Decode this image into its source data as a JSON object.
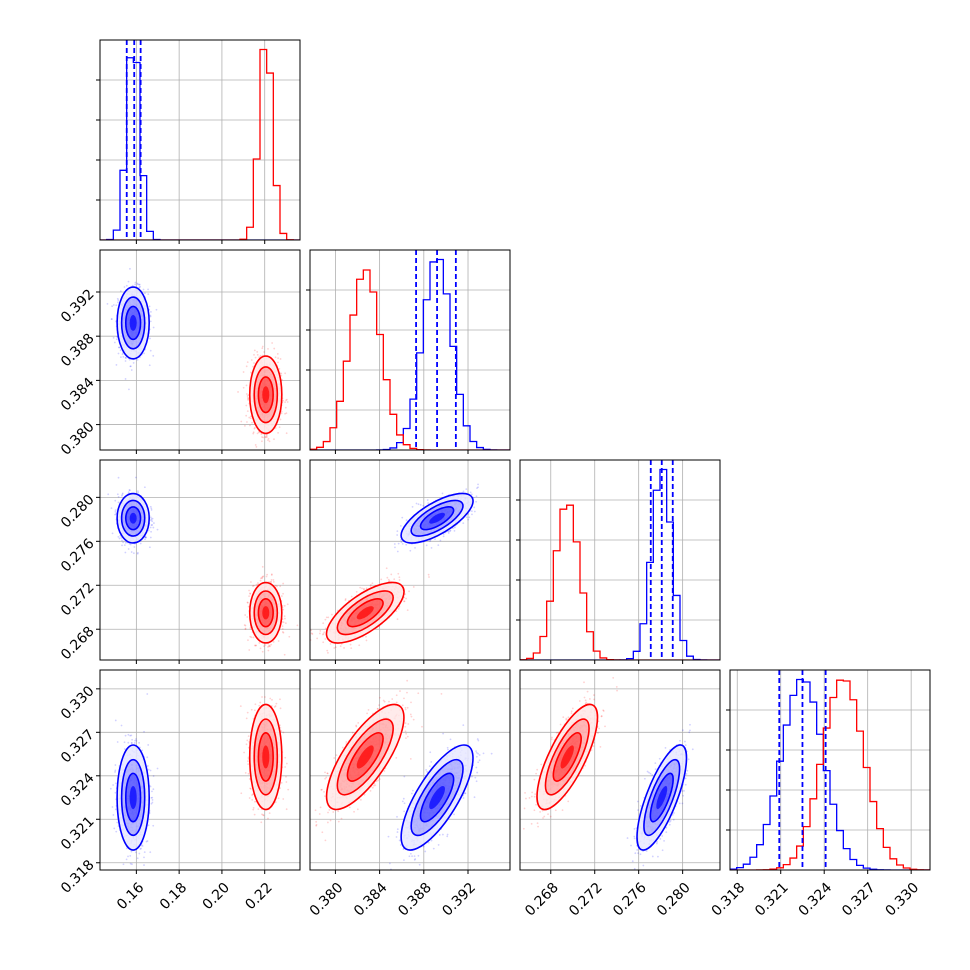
{
  "chart_data": {
    "type": "scatter",
    "title": "",
    "colors": {
      "a": "#0000ff",
      "b": "#ff0000"
    },
    "grid": true,
    "legend": "none",
    "parameters": [
      {
        "ticks": [
          0.16,
          0.18,
          0.2,
          0.22
        ],
        "tick_labels": [
          "0.16",
          "0.18",
          "0.20",
          "0.22"
        ],
        "range": [
          0.143,
          0.2365
        ]
      },
      {
        "ticks": [
          0.38,
          0.384,
          0.388,
          0.392
        ],
        "tick_labels": [
          "0.380",
          "0.384",
          "0.388",
          "0.392"
        ],
        "range": [
          0.3777,
          0.3958
        ]
      },
      {
        "ticks": [
          0.268,
          0.272,
          0.276,
          0.28
        ],
        "tick_labels": [
          "0.268",
          "0.272",
          "0.276",
          "0.280"
        ],
        "range": [
          0.2652,
          0.2834
        ]
      },
      {
        "ticks": [
          0.318,
          0.321,
          0.324,
          0.327,
          0.33
        ],
        "tick_labels": [
          "0.318",
          "0.321",
          "0.324",
          "0.327",
          "0.330"
        ],
        "range": [
          0.3175,
          0.3313
        ]
      }
    ],
    "series": [
      {
        "color": "#0000ff",
        "mean": [
          0.1585,
          0.3892,
          0.2781,
          0.3225
        ],
        "sd": [
          0.003,
          0.0013,
          0.0009,
          0.00145
        ],
        "corr": [
          [
            1,
            0,
            0,
            0
          ],
          [
            0,
            1,
            0.7,
            0.75
          ],
          [
            0,
            0.7,
            1,
            0.75
          ],
          [
            0,
            0.75,
            0.75,
            1
          ]
        ],
        "quantiles": [
          [
            0.1555,
            0.159,
            0.162
          ],
          [
            0.3873,
            0.3892,
            0.3909
          ],
          [
            0.2771,
            0.2781,
            0.2791
          ],
          [
            0.3209,
            0.3225,
            0.3241
          ]
        ]
      },
      {
        "color": "#ff0000",
        "mean": [
          0.2205,
          0.3827,
          0.2695,
          0.3253
        ],
        "sd": [
          0.003,
          0.0014,
          0.0011,
          0.00145
        ],
        "corr": [
          [
            1,
            0,
            0,
            0
          ],
          [
            0,
            1,
            0.7,
            0.75
          ],
          [
            0,
            0.7,
            1,
            0.75
          ],
          [
            0,
            0.75,
            0.75,
            1
          ]
        ]
      }
    ]
  }
}
